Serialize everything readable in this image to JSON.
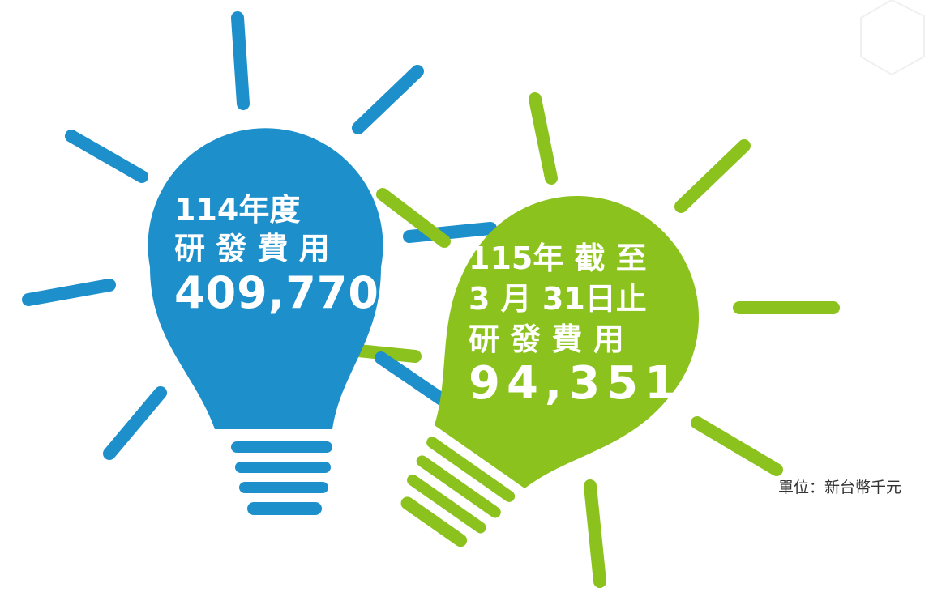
{
  "bulbs": [
    {
      "lines": [
        "114年度",
        "研 發 費 用"
      ],
      "amount": "409,770"
    },
    {
      "lines": [
        "115年 截 至",
        "3 月 31日止",
        "研 發 費 用"
      ],
      "amount": "94,351"
    }
  ],
  "unit": "單位：新台幣千元"
}
